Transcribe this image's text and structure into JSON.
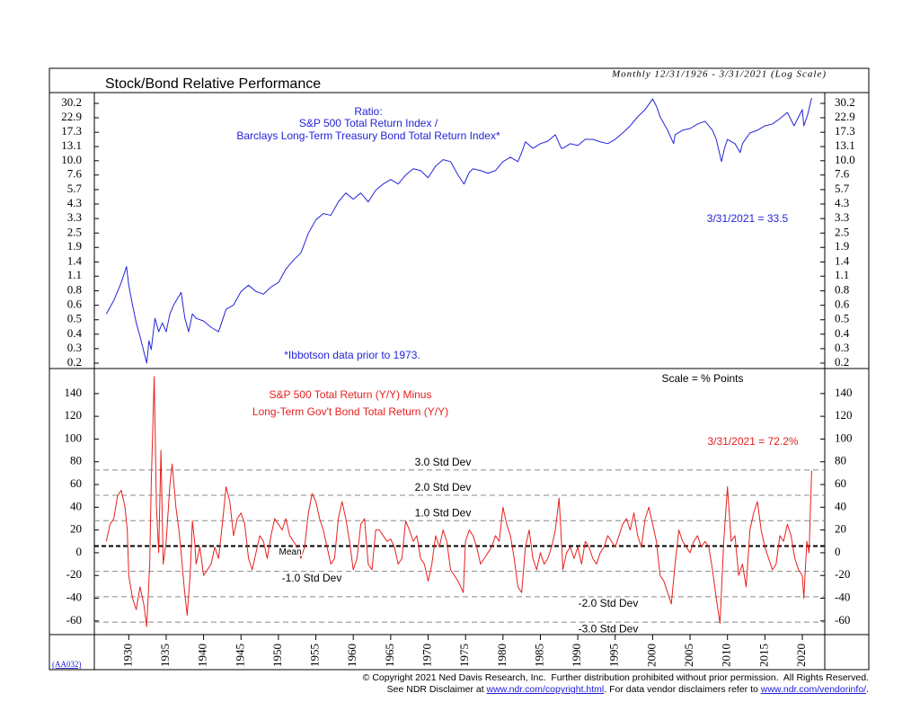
{
  "chart_data": [
    {
      "type": "line",
      "title": "Stock/Bond Relative Performance",
      "subtitle": "Monthly 12/31/1926 - 3/31/2021 (Log Scale)",
      "log_scale": true,
      "annotations": [
        "Ratio:",
        "S&P 500 Total Return Index /",
        "Barclays Long-Term Treasury Bond Total Return Index*",
        "3/31/2021 = 33.5",
        "*Ibbotson data prior to 1973."
      ],
      "xlim": [
        1925.4,
        2023.0
      ],
      "ylim": [
        0.182,
        37.2
      ],
      "yticks": [
        {
          "value": 30.2,
          "label": "30.2"
        },
        {
          "value": 22.9,
          "label": "22.9"
        },
        {
          "value": 17.3,
          "label": "17.3"
        },
        {
          "value": 13.14,
          "label": "13.1"
        },
        {
          "value": 10,
          "label": "10.0"
        },
        {
          "value": 7.59,
          "label": "7.6"
        },
        {
          "value": 5.73,
          "label": "5.7"
        },
        {
          "value": 4.34,
          "label": "4.3"
        },
        {
          "value": 3.28,
          "label": "3.3"
        },
        {
          "value": 2.48,
          "label": "2.5"
        },
        {
          "value": 1.88,
          "label": "1.9"
        },
        {
          "value": 1.42,
          "label": "1.4"
        },
        {
          "value": 1.08,
          "label": "1.1"
        },
        {
          "value": 0.814,
          "label": "0.8"
        },
        {
          "value": 0.616,
          "label": "0.6"
        },
        {
          "value": 0.466,
          "label": "0.5"
        },
        {
          "value": 0.353,
          "label": "0.4"
        },
        {
          "value": 0.267,
          "label": "0.3"
        },
        {
          "value": 0.202,
          "label": "0.2"
        }
      ],
      "x": [
        1927,
        1928,
        1928.5,
        1929,
        1929.7,
        1930,
        1930.5,
        1931,
        1931.5,
        1932.4,
        1932.7,
        1933,
        1933.5,
        1934,
        1934.5,
        1935,
        1935.5,
        1936,
        1937,
        1937.5,
        1938,
        1938.5,
        1939,
        1940,
        1941,
        1942,
        1943,
        1944,
        1945,
        1946,
        1947,
        1948,
        1949,
        1950,
        1951,
        1952,
        1953,
        1954,
        1955,
        1956,
        1957,
        1958,
        1959,
        1960,
        1961,
        1962,
        1963,
        1964,
        1965,
        1966,
        1967,
        1968,
        1969,
        1970,
        1971,
        1972,
        1973,
        1974,
        1974.8,
        1975.5,
        1976,
        1977,
        1978,
        1979,
        1980,
        1981,
        1982,
        1982.5,
        1983,
        1984,
        1985,
        1986,
        1987,
        1987.8,
        1988,
        1989,
        1990,
        1991,
        1992,
        1993,
        1994,
        1995,
        1996,
        1997,
        1998,
        1999,
        2000,
        2000.5,
        2001,
        2002,
        2002.8,
        2003,
        2004,
        2005,
        2006,
        2007,
        2008,
        2008.5,
        2009.2,
        2009.6,
        2010,
        2011,
        2011.7,
        2012,
        2013,
        2014,
        2015,
        2016,
        2017,
        2018,
        2018.9,
        2019.5,
        2020,
        2020.2,
        2020.7,
        2021.25
      ],
      "series": [
        {
          "color": "#2424d8",
          "values": [
            0.522,
            0.676,
            0.804,
            0.955,
            1.3,
            0.907,
            0.62,
            0.439,
            0.339,
            0.202,
            0.311,
            0.262,
            0.479,
            0.37,
            0.439,
            0.37,
            0.522,
            0.62,
            0.79,
            0.479,
            0.37,
            0.522,
            0.479,
            0.455,
            0.403,
            0.37,
            0.569,
            0.62,
            0.804,
            0.907,
            0.804,
            0.763,
            0.876,
            0.955,
            1.24,
            1.47,
            1.69,
            2.47,
            3.2,
            3.61,
            3.49,
            4.52,
            5.37,
            4.76,
            5.37,
            4.52,
            5.66,
            6.38,
            6.96,
            6.38,
            7.59,
            8.56,
            8.27,
            7.2,
            9.01,
            10.2,
            9.83,
            7.59,
            6.38,
            7.99,
            8.56,
            8.27,
            7.85,
            8.27,
            9.83,
            10.7,
            9.83,
            11.7,
            14.4,
            12.7,
            13.9,
            14.6,
            16.5,
            12.7,
            12.7,
            13.9,
            13.4,
            15.1,
            15.1,
            14.4,
            13.9,
            15.1,
            17.1,
            19.6,
            23.3,
            26.8,
            32.9,
            28.7,
            23.3,
            18.0,
            13.9,
            16.5,
            18.0,
            18.6,
            20.3,
            21.4,
            18.0,
            15.1,
            9.83,
            12.7,
            15.1,
            13.9,
            11.7,
            13.9,
            17.1,
            18.0,
            19.6,
            20.3,
            22.5,
            25.4,
            19.6,
            23.3,
            26.8,
            19.6,
            24.1,
            33.5
          ]
        }
      ]
    },
    {
      "type": "line",
      "annotations": [
        "Scale = % Points",
        "S&P 500 Total Return (Y/Y) Minus",
        "Long-Term Gov't Bond Total Return (Y/Y)",
        "3/31/2021 = 72.2%"
      ],
      "xlim": [
        1925.4,
        2023.0
      ],
      "ylim": [
        -72,
        162
      ],
      "yticks": [
        140,
        120,
        100,
        80,
        60,
        40,
        20,
        0,
        -20,
        -40,
        -60
      ],
      "xticks": [
        1930,
        1935,
        1940,
        1945,
        1950,
        1955,
        1960,
        1965,
        1970,
        1975,
        1980,
        1985,
        1990,
        1995,
        2000,
        2005,
        2010,
        2015,
        2020
      ],
      "reference_lines": [
        {
          "label": "3.0 Std Dev",
          "value": 72.8
        },
        {
          "label": "2.0 Std Dev",
          "value": 50.5
        },
        {
          "label": "1.0 Std Dev",
          "value": 28.2
        },
        {
          "label": "Mean",
          "value": 5.9
        },
        {
          "label": "-1.0 Std Dev",
          "value": -16.4
        },
        {
          "label": "-2.0 Std Dev",
          "value": -38.7
        },
        {
          "label": "-3.0 Std Dev",
          "value": -61.0
        }
      ],
      "x": [
        1927,
        1927.5,
        1928,
        1928.5,
        1929,
        1929.5,
        1929.8,
        1930,
        1930.5,
        1931,
        1931.5,
        1932,
        1932.4,
        1932.8,
        1933,
        1933.4,
        1933.7,
        1934,
        1934.3,
        1934.6,
        1935,
        1935.5,
        1935.8,
        1936.3,
        1936.7,
        1937,
        1937.4,
        1937.8,
        1938.2,
        1938.5,
        1938.8,
        1939,
        1939.5,
        1940,
        1940.5,
        1941,
        1941.5,
        1942,
        1942.5,
        1943,
        1943.5,
        1944,
        1944.5,
        1945,
        1945.5,
        1946,
        1946.5,
        1947,
        1947.5,
        1948,
        1948.5,
        1949,
        1949.5,
        1950,
        1950.5,
        1951,
        1951.5,
        1952,
        1952.5,
        1953,
        1953.5,
        1954,
        1954.5,
        1955,
        1955.5,
        1956,
        1956.5,
        1957,
        1957.5,
        1958,
        1958.5,
        1959,
        1959.5,
        1960,
        1960.5,
        1961,
        1961.5,
        1962,
        1962.5,
        1963,
        1963.5,
        1964,
        1964.5,
        1965,
        1965.5,
        1966,
        1966.5,
        1967,
        1967.5,
        1968,
        1968.5,
        1969,
        1969.5,
        1970,
        1970.5,
        1971,
        1971.5,
        1972,
        1972.5,
        1973,
        1973.5,
        1974,
        1974.7,
        1975,
        1975.5,
        1976,
        1976.5,
        1977,
        1977.5,
        1978,
        1978.5,
        1979,
        1979.5,
        1980,
        1980.5,
        1981,
        1981.5,
        1982,
        1982.5,
        1983,
        1983.5,
        1984,
        1984.5,
        1985,
        1985.5,
        1986,
        1986.5,
        1987,
        1987.5,
        1987.9,
        1988,
        1988.5,
        1989,
        1989.5,
        1990,
        1990.5,
        1991,
        1991.5,
        1992,
        1992.5,
        1993,
        1993.5,
        1994,
        1994.5,
        1995,
        1995.5,
        1996,
        1996.5,
        1997,
        1997.5,
        1998,
        1998.5,
        1999,
        1999.5,
        2000,
        2000.5,
        2001,
        2001.5,
        2002,
        2002.5,
        2003,
        2003.5,
        2004,
        2004.5,
        2005,
        2005.5,
        2006,
        2006.5,
        2007,
        2007.5,
        2008,
        2008.5,
        2009,
        2009.5,
        2010,
        2010.5,
        2011,
        2011.5,
        2012,
        2012.5,
        2013,
        2013.5,
        2014,
        2014.5,
        2015,
        2015.5,
        2016,
        2016.5,
        2017,
        2017.5,
        2018,
        2018.5,
        2019,
        2019.5,
        2020,
        2020.2,
        2020.6,
        2020.9,
        2021.25
      ],
      "series": [
        {
          "color": "#e8201e",
          "values": [
            10,
            25,
            30,
            50,
            55,
            40,
            20,
            -20,
            -40,
            -50,
            -30,
            -45,
            -65,
            -10,
            60,
            155,
            40,
            0,
            90,
            -10,
            10,
            60,
            78,
            40,
            20,
            0,
            -30,
            -55,
            -20,
            28,
            10,
            -10,
            5,
            -20,
            -15,
            -10,
            5,
            -5,
            25,
            58,
            45,
            15,
            30,
            35,
            25,
            -5,
            -15,
            0,
            15,
            10,
            -5,
            15,
            30,
            25,
            20,
            30,
            15,
            10,
            5,
            -5,
            5,
            35,
            52,
            45,
            30,
            20,
            5,
            -10,
            -5,
            30,
            45,
            30,
            10,
            -15,
            -5,
            25,
            30,
            -10,
            -15,
            20,
            20,
            15,
            10,
            12,
            5,
            -10,
            -5,
            28,
            20,
            10,
            15,
            -5,
            -10,
            -25,
            -10,
            15,
            5,
            20,
            10,
            -15,
            -20,
            -25,
            -35,
            10,
            20,
            15,
            5,
            -10,
            -5,
            0,
            5,
            15,
            10,
            40,
            25,
            15,
            -5,
            -30,
            -35,
            5,
            20,
            -5,
            -15,
            0,
            -10,
            -5,
            5,
            20,
            48,
            0,
            -15,
            0,
            5,
            -5,
            5,
            -10,
            10,
            5,
            -5,
            -10,
            0,
            5,
            15,
            10,
            5,
            15,
            25,
            30,
            20,
            35,
            15,
            5,
            30,
            40,
            25,
            10,
            -20,
            -25,
            -35,
            -45,
            -10,
            20,
            10,
            5,
            0,
            10,
            15,
            5,
            10,
            5,
            -15,
            -40,
            -62,
            10,
            58,
            10,
            15,
            -20,
            -10,
            -30,
            20,
            35,
            45,
            20,
            5,
            -5,
            -15,
            -10,
            15,
            10,
            25,
            15,
            -5,
            -15,
            -20,
            -40,
            10,
            0,
            72.2
          ]
        }
      ]
    }
  ],
  "code": "(AA032)",
  "footer": {
    "copyright": "© Copyright 2021 Ned Davis Research, Inc.  Further distribution prohibited without prior permission.  All Rights Reserved.",
    "prefix": "See NDR Disclaimer at",
    "link1": "www.ndr.com/copyright.html",
    "middle": ". For data vendor disclaimers refer to",
    "link2": "www.ndr.com/vendorinfo/",
    "suffix": "."
  }
}
